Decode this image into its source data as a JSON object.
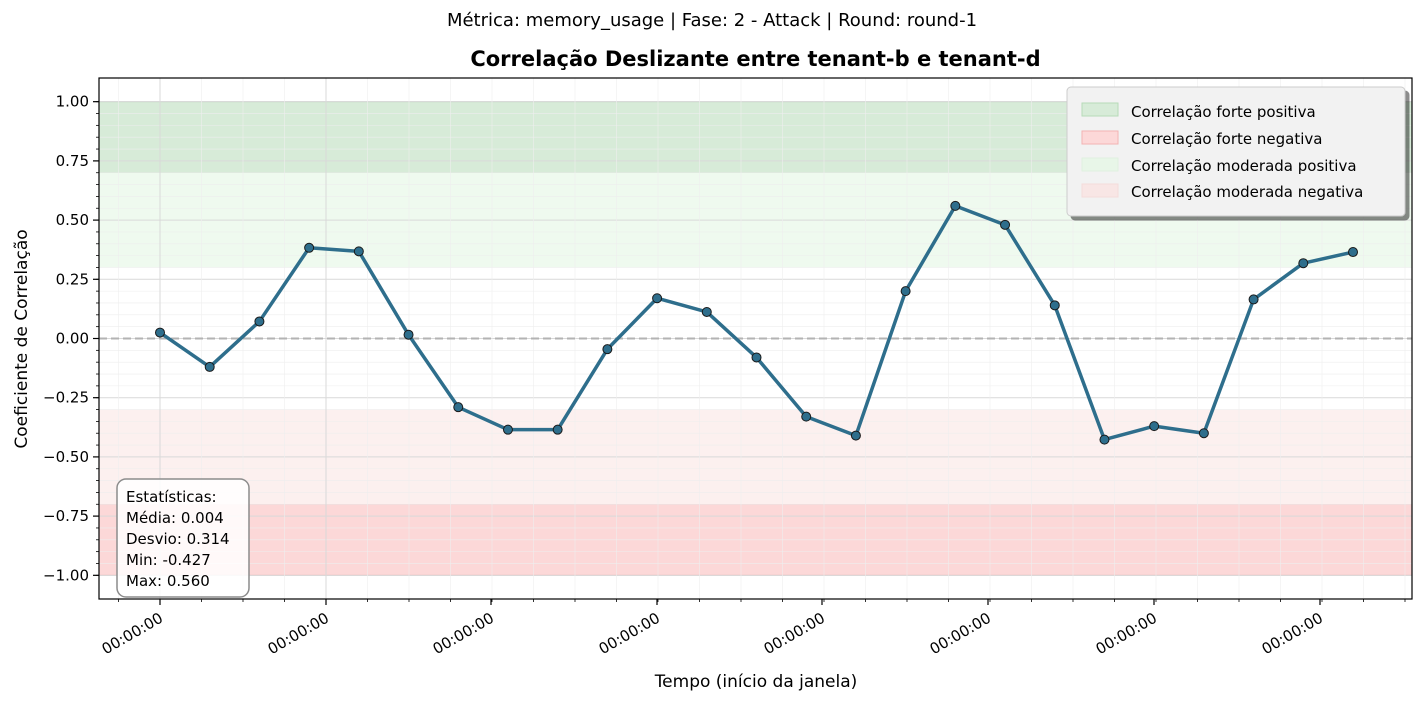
{
  "suptitle": "Métrica: memory_usage | Fase: 2 - Attack | Round: round-1",
  "chart_data": {
    "type": "line",
    "title": "Correlação Deslizante entre tenant-b e tenant-d",
    "xlabel": "Tempo (início da janela)",
    "ylabel": "Coeficiente de Correlação",
    "ylim": [
      -1.1,
      1.1
    ],
    "yticks": [
      1.0,
      0.75,
      0.5,
      0.25,
      0.0,
      -0.25,
      -0.5,
      -0.75,
      -1.0
    ],
    "ytick_labels": [
      "1.00",
      "0.75",
      "0.50",
      "0.25",
      "0.00",
      "−0.25",
      "−0.50",
      "−0.75",
      "−1.00"
    ],
    "xtick_labels": [
      "00:00:00",
      "00:00:00",
      "00:00:00",
      "00:00:00",
      "00:00:00",
      "00:00:00",
      "00:00:00",
      "00:00:00"
    ],
    "grid": true,
    "reference_line": 0.0,
    "bands": [
      {
        "label": "Correlação forte positiva",
        "from": 0.7,
        "to": 1.0,
        "color": "#d7ebd8"
      },
      {
        "label": "Correlação forte negativa",
        "from": -1.0,
        "to": -0.7,
        "color": "#fcd8d8"
      },
      {
        "label": "Correlação moderada positiva",
        "from": 0.3,
        "to": 0.7,
        "color": "#effaef"
      },
      {
        "label": "Correlação moderada negativa",
        "from": -0.7,
        "to": -0.3,
        "color": "#fcf0ef"
      }
    ],
    "legend_position": "top-right",
    "series_color": "#2e6e8c",
    "values": [
      0.025,
      -0.12,
      0.072,
      0.383,
      0.368,
      0.016,
      -0.29,
      -0.385,
      -0.385,
      -0.045,
      0.17,
      0.112,
      -0.08,
      -0.33,
      -0.41,
      0.2,
      0.56,
      0.48,
      0.14,
      -0.427,
      -0.37,
      -0.4,
      0.165,
      0.318,
      0.365
    ]
  },
  "stats": {
    "heading": "Estatísticas:",
    "mean": "Média: 0.004",
    "std": "Desvio: 0.314",
    "min": "Min: -0.427",
    "max": "Max: 0.560"
  }
}
